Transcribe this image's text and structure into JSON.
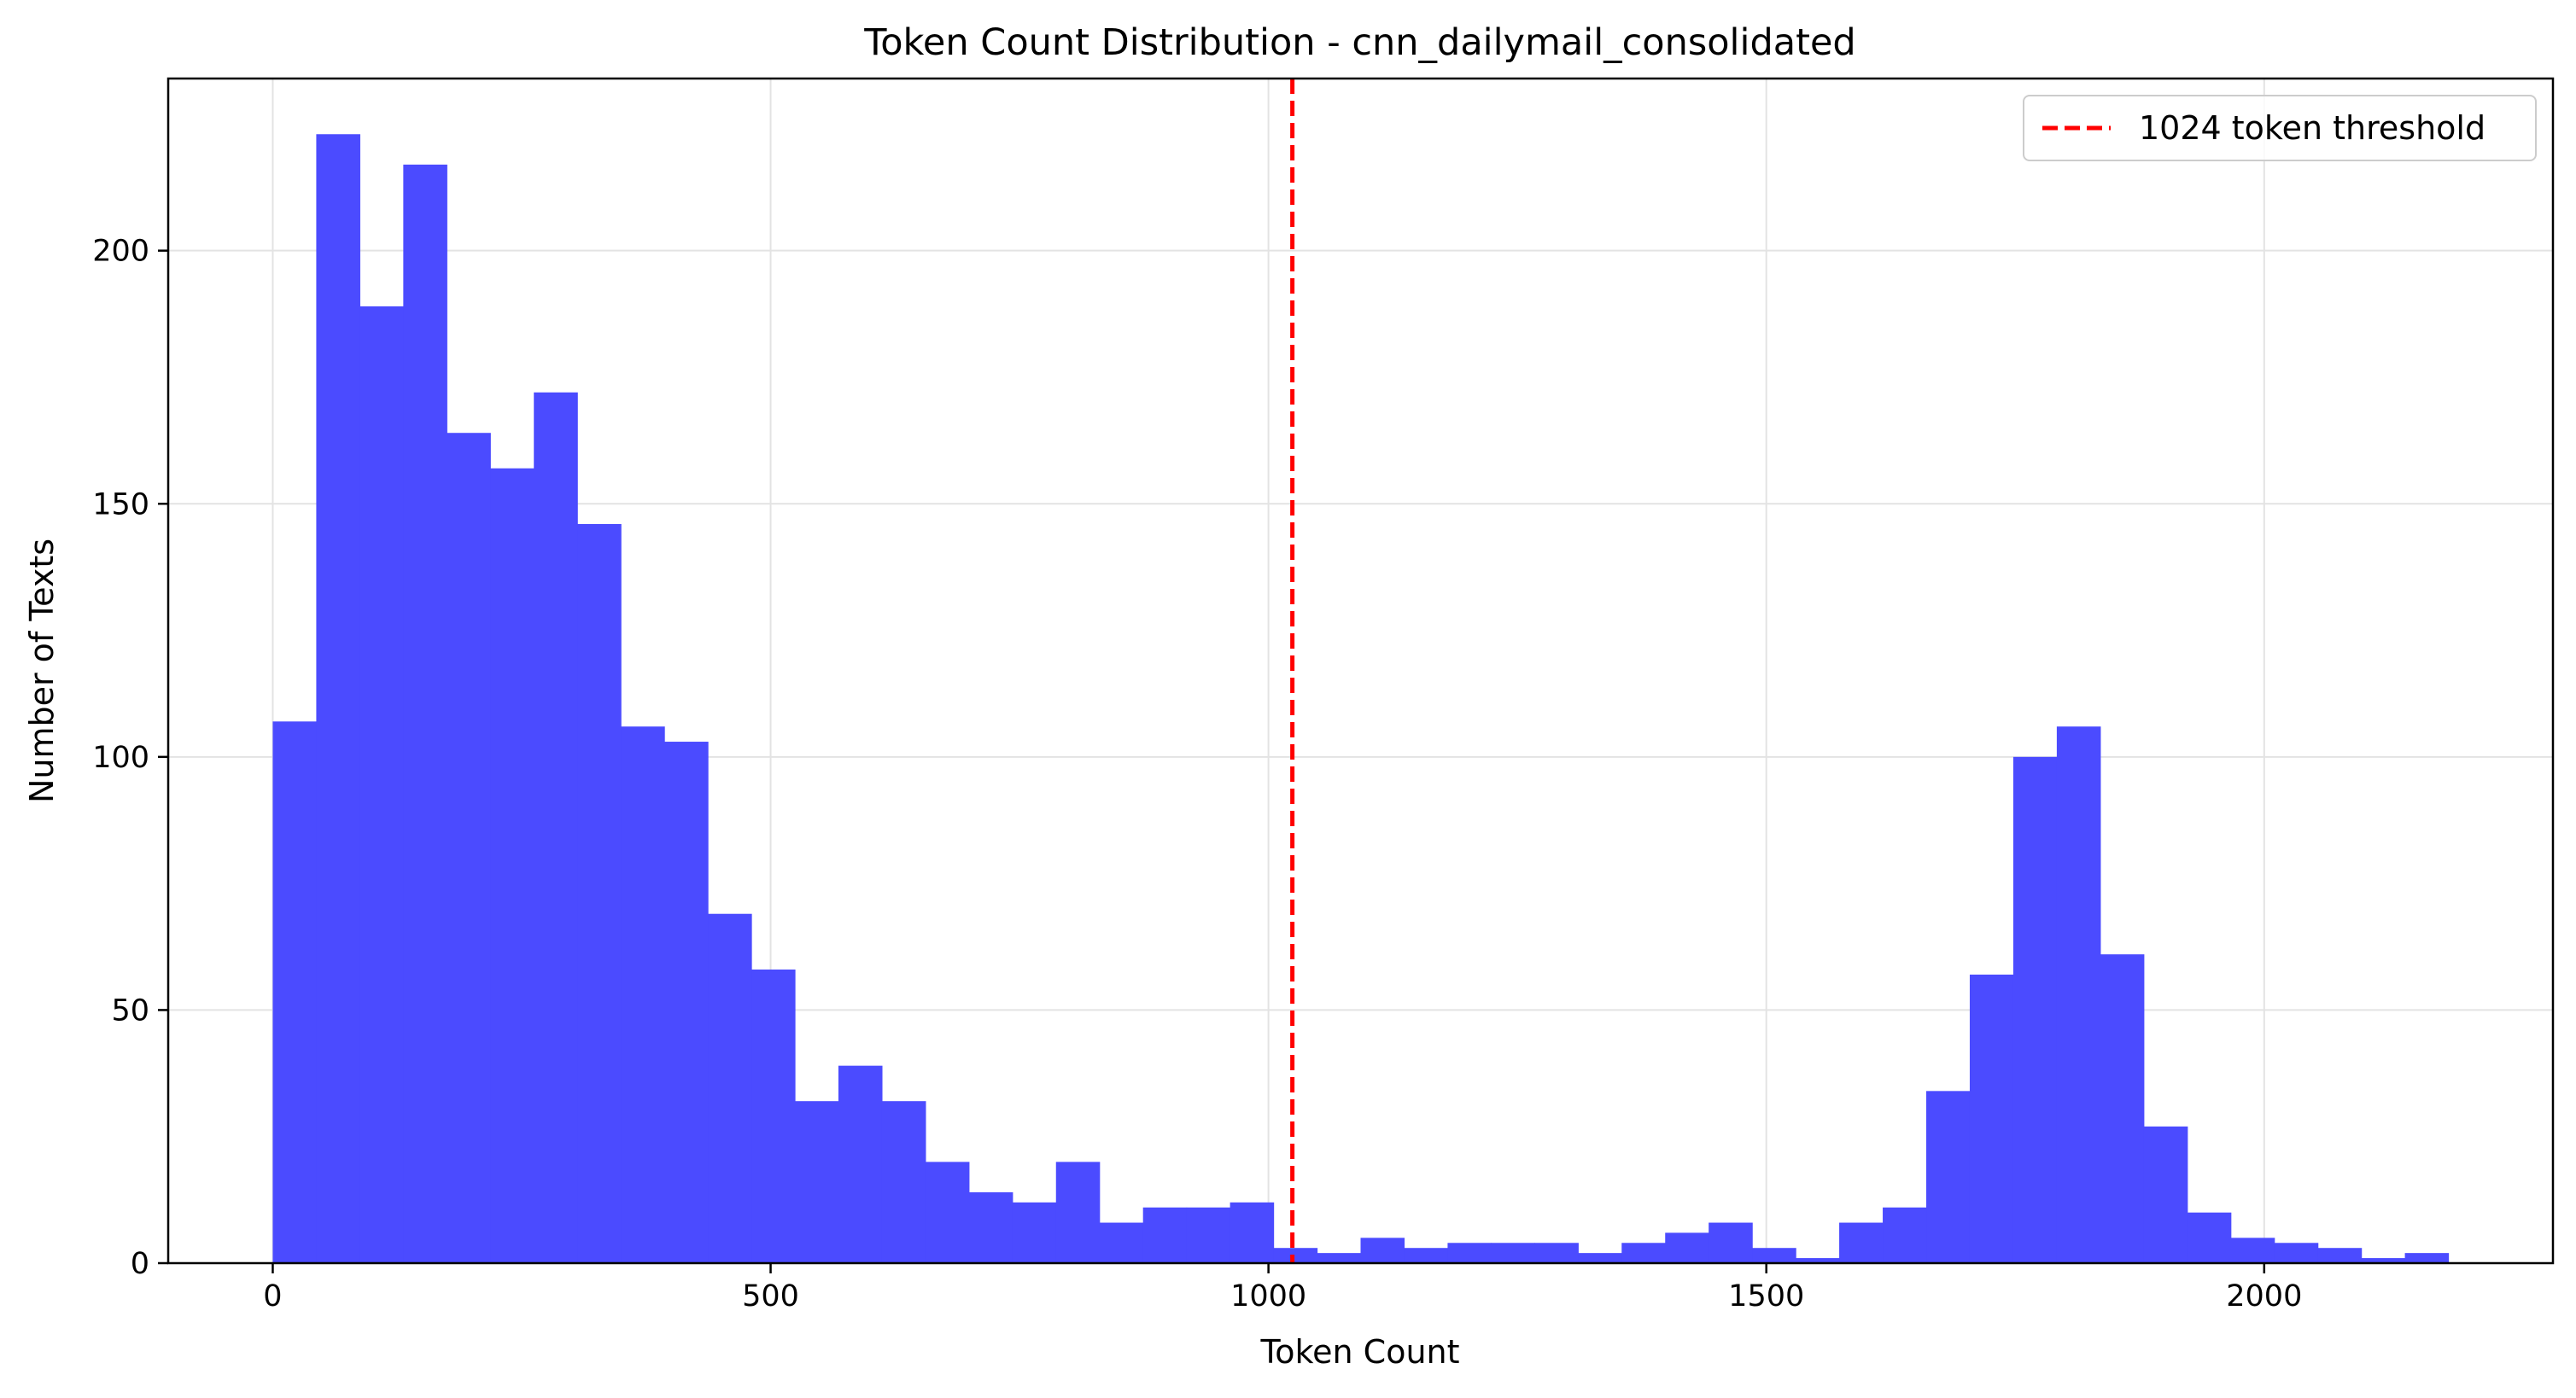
{
  "chart_data": {
    "type": "bar",
    "subtype": "histogram",
    "title": "Token Count Distribution - cnn_dailymail_consolidated",
    "xlabel": "Token Count",
    "ylabel": "Number of Texts",
    "xlim": [
      -105,
      2290
    ],
    "ylim": [
      0,
      234
    ],
    "xticks": [
      0,
      500,
      1000,
      1500,
      2000
    ],
    "yticks": [
      0,
      50,
      100,
      150,
      200
    ],
    "grid": true,
    "legend_position": "top-right",
    "bar_color": "#4b4bff",
    "bins": {
      "start": 0,
      "width": 43.7,
      "counts": [
        107,
        223,
        189,
        217,
        164,
        157,
        172,
        146,
        106,
        103,
        69,
        58,
        32,
        39,
        32,
        20,
        14,
        12,
        20,
        8,
        11,
        11,
        12,
        3,
        2,
        5,
        3,
        4,
        4,
        4,
        2,
        4,
        6,
        8,
        3,
        1,
        8,
        11,
        34,
        57,
        100,
        106,
        61,
        27,
        10,
        5,
        4,
        3,
        1,
        2
      ]
    },
    "threshold": {
      "x": 1024,
      "label": "1024 token threshold",
      "color": "#ff0000",
      "style": "dashed"
    }
  }
}
